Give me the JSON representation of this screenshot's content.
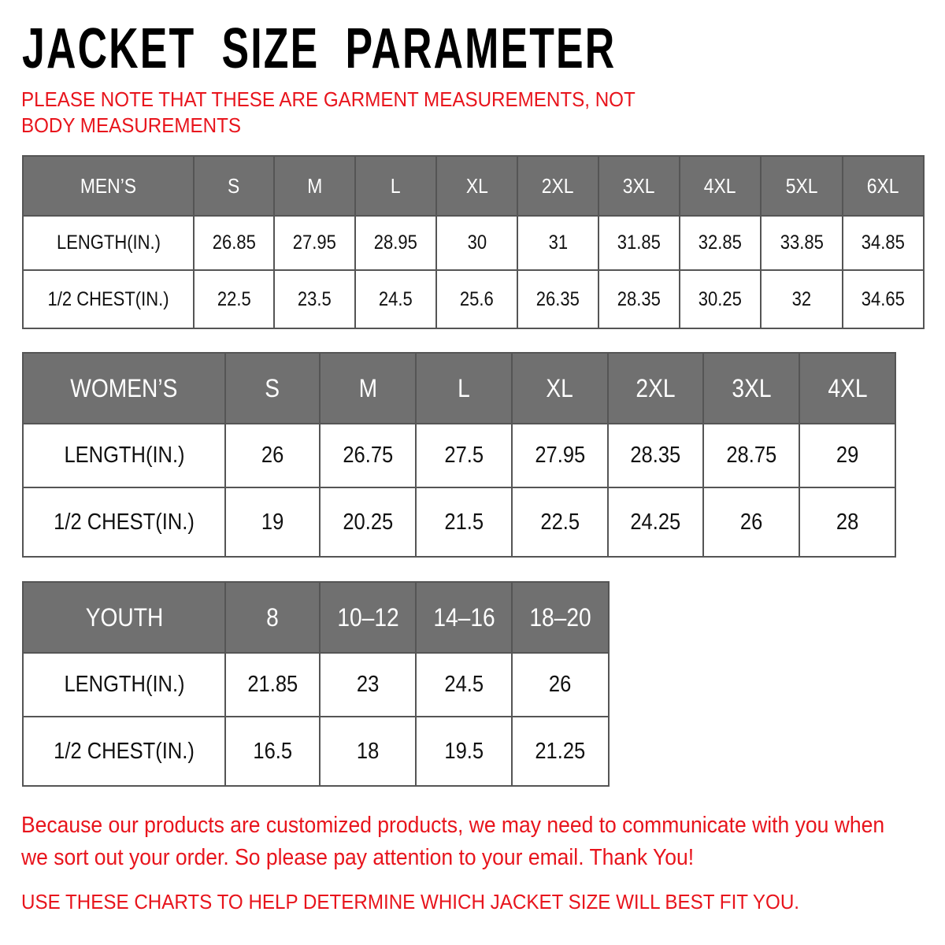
{
  "title": "JACKET  SIZE  PARAMETER",
  "note": "PLEASE NOTE THAT THESE ARE GARMENT MEASUREMENTS, NOT BODY MEASUREMENTS",
  "accent_color": "#e8141c",
  "header_color": "#707070",
  "mens": {
    "header": [
      "MEN’S",
      "S",
      "M",
      "L",
      "XL",
      "2XL",
      "3XL",
      "4XL",
      "5XL",
      "6XL"
    ],
    "rows": [
      [
        "LENGTH(IN.)",
        "26.85",
        "27.95",
        "28.95",
        "30",
        "31",
        "31.85",
        "32.85",
        "33.85",
        "34.85"
      ],
      [
        "1/2 CHEST(IN.)",
        "22.5",
        "23.5",
        "24.5",
        "25.6",
        "26.35",
        "28.35",
        "30.25",
        "32",
        "34.65"
      ]
    ]
  },
  "womens": {
    "header": [
      "WOMEN’S",
      "S",
      "M",
      "L",
      "XL",
      "2XL",
      "3XL",
      "4XL"
    ],
    "rows": [
      [
        "LENGTH(IN.)",
        "26",
        "26.75",
        "27.5",
        "27.95",
        "28.35",
        "28.75",
        "29"
      ],
      [
        "1/2 CHEST(IN.)",
        "19",
        "20.25",
        "21.5",
        "22.5",
        "24.25",
        "26",
        "28"
      ]
    ]
  },
  "youth": {
    "header": [
      "YOUTH",
      "8",
      "10–12",
      "14–16",
      "18–20"
    ],
    "rows": [
      [
        "LENGTH(IN.)",
        "21.85",
        "23",
        "24.5",
        "26"
      ],
      [
        "1/2 CHEST(IN.)",
        "16.5",
        "18",
        "19.5",
        "21.25"
      ]
    ]
  },
  "bottom_note": "Because our products are customized products, we may need to communicate with you when we sort out your order. So please pay attention to your email. Thank You!",
  "footer": "USE THESE CHARTS TO HELP DETERMINE WHICH JACKET SIZE WILL BEST FIT YOU."
}
